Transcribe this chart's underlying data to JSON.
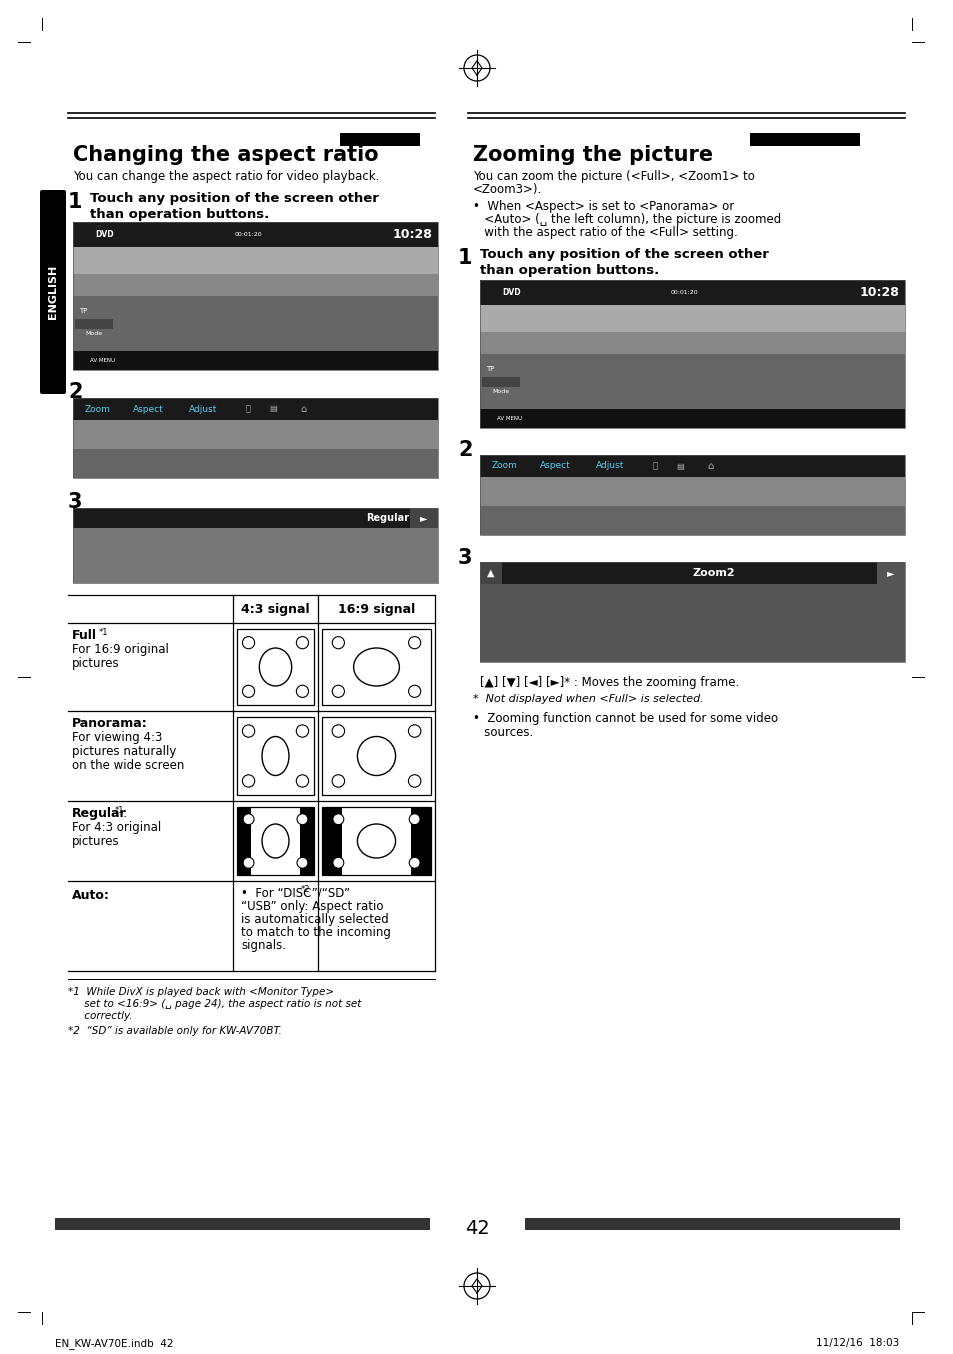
{
  "page_num": "42",
  "bg_color": "#ffffff",
  "left_title": "Changing the aspect ratio",
  "right_title": "Zooming the picture",
  "left_subtitle": "You can change the aspect ratio for video playback.",
  "right_subtitle_l1": "You can zoom the picture (<Full>, <Zoom1> to",
  "right_subtitle_l2": "<Zoom3>).",
  "right_bullet_l1": "•  When <Aspect> is set to <Panorama> or",
  "right_bullet_l2": "   <Auto> (␣ the left column), the picture is zoomed",
  "right_bullet_l3": "   with the aspect ratio of the <Full> setting.",
  "step1_bold_l1": "Touch any position of the screen other",
  "step1_bold_l2": "than operation buttons.",
  "table_col1": "4:3 signal",
  "table_col2": "16:9 signal",
  "footnote1_l1": "*1  While DivX is played back with <Monitor Type>",
  "footnote1_l2": "     set to <16:9> (␣ page 24), the aspect ratio is not set",
  "footnote1_l3": "     correctly.",
  "footnote2": "*2  “SD” is available only for KW-AV70BT.",
  "zoom_arrow_note": "[▲] [▼] [◄] [►]* : Moves the zooming frame.",
  "zoom_fn1": "*  Not displayed when <Full> is selected.",
  "zoom_fn2_l1": "•  Zooming function cannot be used for some video",
  "zoom_fn2_l2": "   sources.",
  "footer_left": "EN_KW-AV70E.indb  42",
  "footer_right": "11/12/16  18:03",
  "bar_color": "#333333",
  "tab_color": "#000000",
  "cyan_menu": "#5bc8f0",
  "screen_dark": "#1e1e1e",
  "screen_mid": "#707070",
  "screen_light": "#aaaaaa"
}
